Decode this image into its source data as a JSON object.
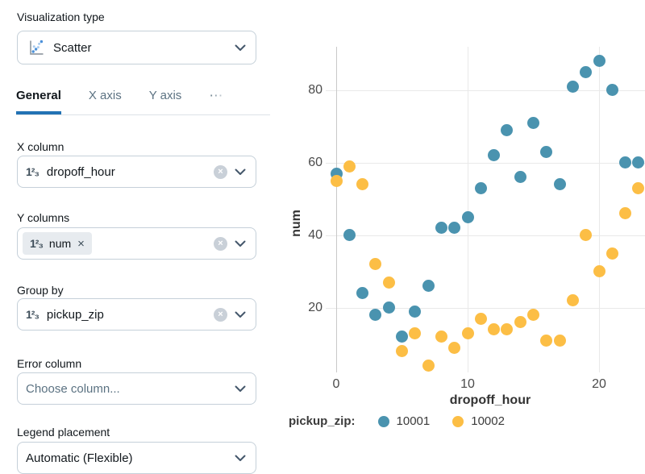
{
  "panel": {
    "viz_type_label": "Visualization type",
    "viz_type_value": "Scatter",
    "tabs": [
      {
        "label": "General"
      },
      {
        "label": "X axis"
      },
      {
        "label": "Y axis"
      },
      {
        "label": "⋯"
      }
    ],
    "x_column": {
      "label": "X column",
      "value": "dropoff_hour"
    },
    "y_columns": {
      "label": "Y columns",
      "chip": {
        "value": "num",
        "remove_glyph": "×"
      }
    },
    "group_by": {
      "label": "Group by",
      "value": "pickup_zip"
    },
    "error_column": {
      "label": "Error column",
      "placeholder": "Choose column..."
    },
    "legend_placement": {
      "label": "Legend placement",
      "value": "Automatic (Flexible)"
    },
    "number_type_glyph": "1²₃",
    "clear_glyph": "×",
    "accent_color": "#2272B4"
  },
  "chart_data": {
    "type": "scatter",
    "title": "",
    "xlabel": "dropoff_hour",
    "ylabel": "num",
    "x_ticks": [
      0,
      10,
      20
    ],
    "y_ticks": [
      20,
      40,
      60,
      80
    ],
    "xlim": [
      0,
      23.5
    ],
    "ylim": [
      2,
      93
    ],
    "grid": true,
    "legend_position": "bottom",
    "legend_title": "pickup_zip:",
    "grid_color": "#E9E9E9",
    "axis_line_color": "#C9C9C9",
    "x": [
      0,
      1,
      2,
      3,
      4,
      5,
      6,
      7,
      8,
      9,
      10,
      11,
      12,
      13,
      14,
      15,
      16,
      17,
      18,
      19,
      20,
      21,
      22,
      23
    ],
    "series": [
      {
        "name": "10001",
        "color": "#4A93AF",
        "y": [
          57,
          40,
          24,
          18,
          20,
          12,
          19,
          26,
          42,
          42,
          45,
          53,
          62,
          69,
          56,
          71,
          63,
          54,
          81,
          85,
          88,
          80,
          60,
          60
        ]
      },
      {
        "name": "10002",
        "color": "#FCBE45",
        "y": [
          55,
          59,
          54,
          32,
          27,
          8,
          13,
          4,
          12,
          9,
          13,
          17,
          14,
          14,
          16,
          18,
          11,
          11,
          22,
          40,
          30,
          35,
          46,
          53
        ]
      }
    ]
  }
}
